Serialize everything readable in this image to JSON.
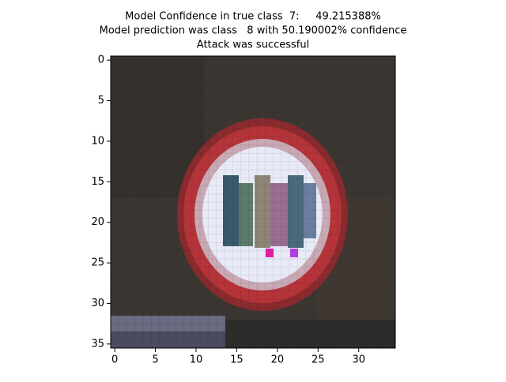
{
  "chart_data": {
    "type": "image",
    "title": [
      "Model Confidence in true class  7:     49.215388%",
      "Model prediction was class   8 with 50.190002% confidence",
      "Attack was successful"
    ],
    "xlim": [
      -0.5,
      34.5
    ],
    "ylim": [
      35.5,
      -0.5
    ],
    "xticks": [
      0,
      5,
      10,
      15,
      20,
      25,
      30
    ],
    "yticks": [
      0,
      5,
      10,
      15,
      20,
      25,
      30,
      35
    ]
  }
}
